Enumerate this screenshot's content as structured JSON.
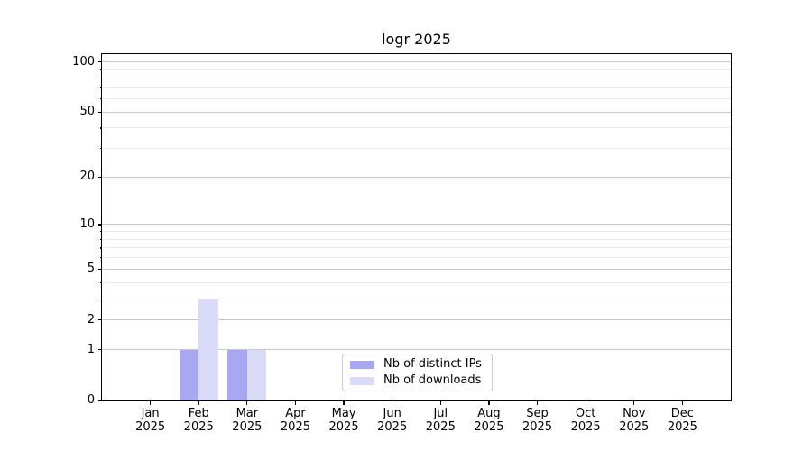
{
  "chart_data": {
    "type": "bar",
    "title": "logr 2025",
    "year_label": "2025",
    "categories": [
      "Jan",
      "Feb",
      "Mar",
      "Apr",
      "May",
      "Jun",
      "Jul",
      "Aug",
      "Sep",
      "Oct",
      "Nov",
      "Dec"
    ],
    "series": [
      {
        "name": "Nb of distinct IPs",
        "color": "#a8a8f2",
        "values": [
          0,
          1,
          1,
          0,
          0,
          0,
          0,
          0,
          0,
          0,
          0,
          0
        ]
      },
      {
        "name": "Nb of downloads",
        "color": "#dadaf9",
        "values": [
          0,
          3,
          1,
          0,
          0,
          0,
          0,
          0,
          0,
          0,
          0,
          0
        ]
      }
    ],
    "yscale": "log1p",
    "ylim": [
      0,
      112
    ],
    "ytick_labels": [
      0,
      1,
      2,
      5,
      10,
      20,
      50,
      100
    ],
    "ytick_minor": [
      3,
      4,
      6,
      7,
      8,
      9,
      30,
      40,
      60,
      70,
      80,
      90
    ],
    "xlabel": "",
    "ylabel": "",
    "grid": "on",
    "legend_position": "lower center inside"
  },
  "colors": {
    "grid_major": "#c8c8c8",
    "grid_minor": "#e9e9e9",
    "spine": "#000000",
    "background": "#ffffff"
  }
}
